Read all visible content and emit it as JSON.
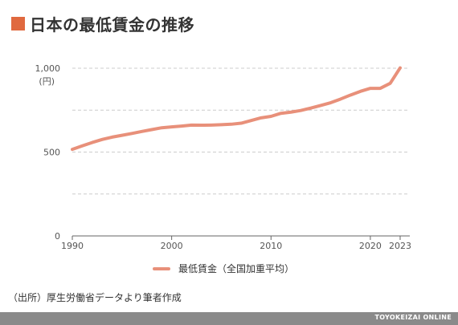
{
  "title": "日本の最低賃金の推移",
  "colors": {
    "accent": "#e0693f",
    "series": "#e8907a",
    "grid": "#cccccc",
    "footer_bg": "#8a8a8a"
  },
  "chart_data": {
    "type": "line",
    "title": "日本の最低賃金の推移",
    "xlabel": "",
    "ylabel": "",
    "y_unit": "(円)",
    "ylim": [
      0,
      1000
    ],
    "xlim": [
      1990,
      2023
    ],
    "y_ticks": [
      0,
      500,
      1000
    ],
    "y_tick_labels": [
      "0",
      "500",
      "1,000"
    ],
    "y_grid": [
      250,
      500,
      750,
      1000
    ],
    "x_ticks": [
      1990,
      2000,
      2010,
      2020,
      2023
    ],
    "x_tick_labels": [
      "1990",
      "2000",
      "2010",
      "2020",
      "2023"
    ],
    "grid": true,
    "legend_position": "bottom",
    "series": [
      {
        "name": "最低賃金（全国加重平均）",
        "x": [
          1990,
          1991,
          1992,
          1993,
          1994,
          1995,
          1996,
          1997,
          1998,
          1999,
          2000,
          2001,
          2002,
          2003,
          2004,
          2005,
          2006,
          2007,
          2008,
          2009,
          2010,
          2011,
          2012,
          2013,
          2014,
          2015,
          2016,
          2017,
          2018,
          2019,
          2020,
          2021,
          2022,
          2023
        ],
        "y": [
          516,
          537,
          557,
          575,
          589,
          600,
          611,
          623,
          634,
          645,
          650,
          655,
          661,
          660,
          661,
          663,
          666,
          672,
          688,
          704,
          713,
          731,
          738,
          748,
          762,
          778,
          794,
          816,
          840,
          862,
          880,
          880,
          910,
          1002
        ]
      }
    ]
  },
  "legend": {
    "label": "最低賃金（全国加重平均）"
  },
  "source": "（出所）厚生労働省データより筆者作成",
  "footer": {
    "label": "TOYOKEIZAI ONLINE"
  }
}
